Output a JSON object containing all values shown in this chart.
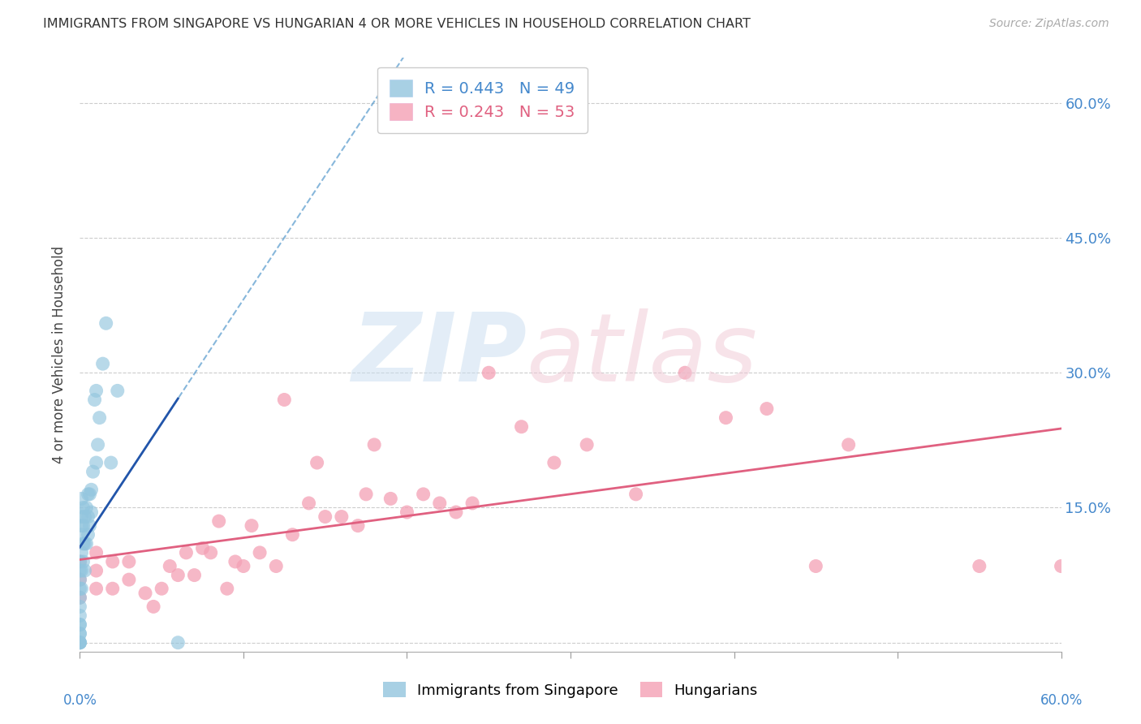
{
  "title": "IMMIGRANTS FROM SINGAPORE VS HUNGARIAN 4 OR MORE VEHICLES IN HOUSEHOLD CORRELATION CHART",
  "source": "Source: ZipAtlas.com",
  "ylabel": "4 or more Vehicles in Household",
  "xlim": [
    0.0,
    0.6
  ],
  "ylim": [
    -0.01,
    0.65
  ],
  "yticks": [
    0.0,
    0.15,
    0.3,
    0.45,
    0.6
  ],
  "ytick_labels": [
    "",
    "15.0%",
    "30.0%",
    "45.0%",
    "60.0%"
  ],
  "xticks": [
    0.0,
    0.1,
    0.2,
    0.3,
    0.4,
    0.5,
    0.6
  ],
  "legend_R1": "R = 0.443",
  "legend_N1": "N = 49",
  "legend_R2": "R = 0.243",
  "legend_N2": "N = 53",
  "blue_scatter_color": "#92c5de",
  "pink_scatter_color": "#f4a0b5",
  "blue_line_color": "#5599cc",
  "pink_line_color": "#e06080",
  "blue_solid_color": "#2255aa",
  "sg_x": [
    0.0,
    0.0,
    0.0,
    0.0,
    0.0,
    0.0,
    0.0,
    0.0,
    0.0,
    0.0,
    0.0,
    0.0,
    0.0,
    0.0,
    0.0,
    0.001,
    0.001,
    0.001,
    0.001,
    0.001,
    0.001,
    0.001,
    0.002,
    0.002,
    0.002,
    0.002,
    0.003,
    0.003,
    0.003,
    0.004,
    0.004,
    0.005,
    0.005,
    0.005,
    0.006,
    0.006,
    0.007,
    0.007,
    0.008,
    0.009,
    0.01,
    0.01,
    0.011,
    0.012,
    0.014,
    0.016,
    0.019,
    0.023,
    0.06
  ],
  "sg_y": [
    0.0,
    0.0,
    0.0,
    0.0,
    0.01,
    0.01,
    0.02,
    0.02,
    0.03,
    0.04,
    0.05,
    0.06,
    0.07,
    0.08,
    0.09,
    0.06,
    0.08,
    0.1,
    0.12,
    0.13,
    0.14,
    0.16,
    0.09,
    0.11,
    0.13,
    0.15,
    0.08,
    0.11,
    0.14,
    0.11,
    0.15,
    0.12,
    0.14,
    0.165,
    0.13,
    0.165,
    0.145,
    0.17,
    0.19,
    0.27,
    0.2,
    0.28,
    0.22,
    0.25,
    0.31,
    0.355,
    0.2,
    0.28,
    0.0
  ],
  "hu_x": [
    0.0,
    0.0,
    0.0,
    0.01,
    0.01,
    0.01,
    0.02,
    0.02,
    0.03,
    0.03,
    0.04,
    0.045,
    0.05,
    0.055,
    0.06,
    0.065,
    0.07,
    0.075,
    0.08,
    0.085,
    0.09,
    0.095,
    0.1,
    0.105,
    0.11,
    0.12,
    0.125,
    0.13,
    0.14,
    0.145,
    0.15,
    0.16,
    0.17,
    0.175,
    0.18,
    0.19,
    0.2,
    0.21,
    0.22,
    0.23,
    0.24,
    0.25,
    0.27,
    0.29,
    0.31,
    0.34,
    0.37,
    0.395,
    0.42,
    0.45,
    0.47,
    0.55,
    0.6
  ],
  "hu_y": [
    0.05,
    0.07,
    0.09,
    0.06,
    0.08,
    0.1,
    0.06,
    0.09,
    0.07,
    0.09,
    0.055,
    0.04,
    0.06,
    0.085,
    0.075,
    0.1,
    0.075,
    0.105,
    0.1,
    0.135,
    0.06,
    0.09,
    0.085,
    0.13,
    0.1,
    0.085,
    0.27,
    0.12,
    0.155,
    0.2,
    0.14,
    0.14,
    0.13,
    0.165,
    0.22,
    0.16,
    0.145,
    0.165,
    0.155,
    0.145,
    0.155,
    0.3,
    0.24,
    0.2,
    0.22,
    0.165,
    0.3,
    0.25,
    0.26,
    0.085,
    0.22,
    0.085,
    0.085
  ]
}
